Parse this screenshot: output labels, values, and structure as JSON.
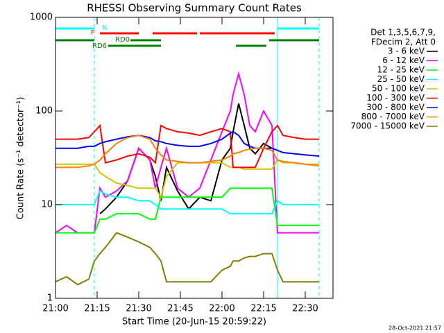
{
  "chart_data": {
    "type": "line",
    "title": "RHESSI Observing Summary Count Rates",
    "x_label": "Start Time (20-Jun-15 20:59:22)",
    "y_label": "Count Rate (s⁻¹ detector⁻¹)",
    "timestamp": "28-Oct-2021 21:57",
    "legend_header": [
      "Det 1,3,5,6,7,9,",
      "FDecim 2, Att 0"
    ],
    "log_y": true,
    "xlim": [
      "21:00",
      "22:40"
    ],
    "xticks": [
      "21:00",
      "21:15",
      "21:30",
      "21:45",
      "22:00",
      "22:15",
      "22:30"
    ],
    "ylim": [
      1,
      1000
    ],
    "yticks": [
      1,
      10,
      100,
      1000
    ],
    "flags": [
      {
        "name": "N",
        "color": "#00ffff",
        "intervals": [
          [
            "21:00",
            "21:14"
          ],
          [
            "22:20",
            "22:35"
          ]
        ]
      },
      {
        "name": "F",
        "color": "#ff0000",
        "intervals": [
          [
            "21:16",
            "21:30"
          ],
          [
            "21:35",
            "21:51"
          ],
          [
            "21:52",
            "22:19"
          ]
        ]
      },
      {
        "name": "RD0",
        "color": "#008000",
        "intervals": [
          [
            "21:00",
            "21:14"
          ],
          [
            "21:27",
            "21:38"
          ],
          [
            "22:17",
            "22:35"
          ]
        ]
      },
      {
        "name": "RD6",
        "color": "#008000",
        "intervals": [
          [
            "21:19",
            "21:38"
          ],
          [
            "22:05",
            "22:16"
          ]
        ]
      }
    ],
    "x": [
      "21:00",
      "21:04",
      "21:08",
      "21:12",
      "21:14",
      "21:16",
      "21:18",
      "21:22",
      "21:26",
      "21:30",
      "21:34",
      "21:36",
      "21:38",
      "21:40",
      "21:44",
      "21:48",
      "21:52",
      "21:56",
      "22:00",
      "22:03",
      "22:04",
      "22:06",
      "22:08",
      "22:10",
      "22:12",
      "22:15",
      "22:18",
      "22:20",
      "22:22",
      "22:26",
      "22:30",
      "22:35"
    ],
    "series": [
      {
        "name": "3 - 6 keV",
        "color": "#000000",
        "values": [
          null,
          null,
          null,
          null,
          null,
          8,
          9,
          12,
          18,
          40,
          30,
          20,
          11,
          25,
          14,
          9,
          12,
          11,
          30,
          40,
          60,
          120,
          70,
          40,
          35,
          45,
          40,
          null,
          null,
          null,
          null,
          null
        ]
      },
      {
        "name": "6 - 12 keV",
        "color": "#ff00ff",
        "values": [
          5,
          6,
          5,
          5,
          5,
          15,
          12,
          14,
          18,
          40,
          30,
          15,
          25,
          40,
          15,
          12,
          15,
          30,
          60,
          100,
          150,
          250,
          150,
          70,
          60,
          100,
          70,
          5,
          5,
          5,
          5,
          5
        ]
      },
      {
        "name": "12 - 25 keV",
        "color": "#00ff00",
        "values": [
          5,
          5,
          5,
          5,
          5,
          7,
          7,
          8,
          8,
          8,
          7,
          7,
          12,
          12,
          12,
          12,
          12,
          12,
          12,
          15,
          15,
          15,
          15,
          15,
          15,
          15,
          15,
          6,
          6,
          6,
          6,
          6
        ]
      },
      {
        "name": "25 - 50 keV",
        "color": "#00ffff",
        "values": [
          10,
          10,
          10,
          10,
          10,
          14,
          13,
          12,
          12,
          11,
          11,
          10,
          9,
          9,
          9,
          9,
          9,
          9,
          9,
          8,
          8,
          8,
          8,
          8,
          8,
          8,
          8,
          11,
          10,
          10,
          10,
          10
        ]
      },
      {
        "name": "50 - 100 keV",
        "color": "#c8c800",
        "values": [
          27,
          27,
          27,
          27,
          27,
          22,
          20,
          17,
          16,
          15,
          15,
          15,
          12,
          20,
          28,
          28,
          28,
          28,
          28,
          25,
          25,
          25,
          24,
          24,
          24,
          24,
          24,
          30,
          28,
          28,
          27,
          27
        ]
      },
      {
        "name": "100 - 300 keV",
        "color": "#ff0000",
        "values": [
          50,
          50,
          50,
          52,
          60,
          70,
          28,
          30,
          33,
          35,
          32,
          28,
          70,
          65,
          60,
          58,
          55,
          60,
          65,
          60,
          25,
          25,
          25,
          25,
          25,
          40,
          60,
          70,
          55,
          52,
          50,
          50
        ]
      },
      {
        "name": "300 - 800 keV",
        "color": "#0000ff",
        "values": [
          40,
          40,
          40,
          42,
          42,
          45,
          47,
          50,
          53,
          55,
          52,
          48,
          47,
          45,
          43,
          42,
          42,
          45,
          50,
          58,
          60,
          55,
          45,
          42,
          40,
          40,
          40,
          38,
          36,
          35,
          34,
          33
        ]
      },
      {
        "name": "800 - 7000 keV",
        "color": "#ff8000",
        "values": [
          25,
          25,
          25,
          26,
          27,
          30,
          35,
          45,
          52,
          55,
          50,
          40,
          34,
          30,
          29,
          28,
          28,
          29,
          30,
          33,
          35,
          36,
          38,
          39,
          40,
          40,
          38,
          30,
          29,
          28,
          27,
          26
        ]
      },
      {
        "name": "7000 - 15000 keV",
        "color": "#808000",
        "values": [
          1.5,
          1.7,
          1.4,
          1.6,
          2.5,
          3,
          3.5,
          5,
          4.5,
          4,
          3.5,
          3,
          2.5,
          1.5,
          1.5,
          1.5,
          1.5,
          1.5,
          2,
          2.2,
          2.5,
          2.5,
          2.7,
          2.8,
          2.8,
          3,
          3,
          2,
          1.5,
          1.5,
          1.5,
          1.5
        ]
      }
    ]
  }
}
